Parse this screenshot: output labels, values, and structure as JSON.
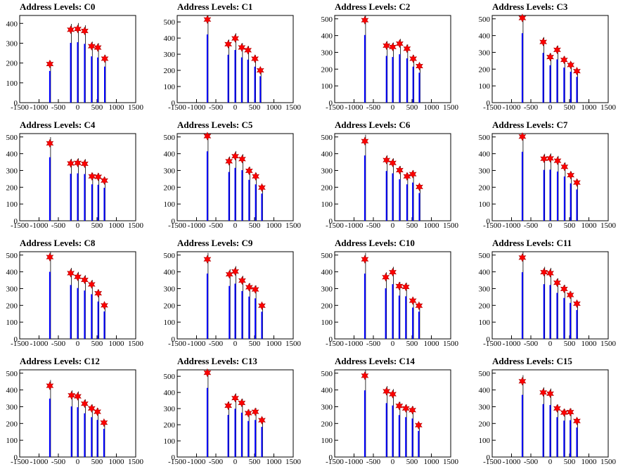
{
  "colors": {
    "histogram": "#0000ff",
    "marker_fill": "#ff0000",
    "marker_stroke": "#b00000",
    "axis": "#000000",
    "background": "#ffffff"
  },
  "chart_data": [
    {
      "type": "bar",
      "title": "Address Levels: C0",
      "xlim": [
        -1500,
        1500
      ],
      "ylim": [
        0,
        440
      ],
      "yticks": [
        0,
        100,
        200,
        300,
        400
      ],
      "xticks": [
        -1500,
        -1000,
        -500,
        0,
        500,
        1000,
        1500
      ],
      "peaks": [
        {
          "x": -720,
          "y": 195
        },
        {
          "x": -180,
          "y": 368
        },
        {
          "x": 0,
          "y": 372
        },
        {
          "x": 180,
          "y": 362
        },
        {
          "x": 360,
          "y": 285
        },
        {
          "x": 520,
          "y": 278
        },
        {
          "x": 700,
          "y": 222
        }
      ]
    },
    {
      "type": "bar",
      "title": "Address Levels: C1",
      "xlim": [
        -1500,
        1500
      ],
      "ylim": [
        0,
        540
      ],
      "yticks": [
        0,
        100,
        200,
        300,
        400,
        500
      ],
      "xticks": [
        -1500,
        -1000,
        -500,
        0,
        500,
        1000,
        1500
      ],
      "peaks": [
        {
          "x": -720,
          "y": 515
        },
        {
          "x": -180,
          "y": 362
        },
        {
          "x": 0,
          "y": 398
        },
        {
          "x": 170,
          "y": 342
        },
        {
          "x": 330,
          "y": 325
        },
        {
          "x": 510,
          "y": 272
        },
        {
          "x": 650,
          "y": 200
        }
      ]
    },
    {
      "type": "bar",
      "title": "Address Levels: C2",
      "xlim": [
        -1500,
        1500
      ],
      "ylim": [
        0,
        520
      ],
      "yticks": [
        0,
        100,
        200,
        300,
        400,
        500
      ],
      "xticks": [
        -1500,
        -1000,
        -500,
        0,
        500,
        1000,
        1500
      ],
      "peaks": [
        {
          "x": -720,
          "y": 492
        },
        {
          "x": -160,
          "y": 340
        },
        {
          "x": 0,
          "y": 332
        },
        {
          "x": 180,
          "y": 352
        },
        {
          "x": 370,
          "y": 322
        },
        {
          "x": 530,
          "y": 262
        },
        {
          "x": 690,
          "y": 218
        }
      ]
    },
    {
      "type": "bar",
      "title": "Address Levels: C3",
      "xlim": [
        -1500,
        1500
      ],
      "ylim": [
        0,
        520
      ],
      "yticks": [
        0,
        100,
        200,
        300,
        400,
        500
      ],
      "xticks": [
        -1500,
        -1000,
        -500,
        0,
        500,
        1000,
        1500
      ],
      "peaks": [
        {
          "x": -720,
          "y": 505
        },
        {
          "x": -180,
          "y": 362
        },
        {
          "x": 0,
          "y": 272
        },
        {
          "x": 180,
          "y": 315
        },
        {
          "x": 360,
          "y": 255
        },
        {
          "x": 530,
          "y": 225
        },
        {
          "x": 690,
          "y": 188
        }
      ]
    },
    {
      "type": "bar",
      "title": "Address Levels: C4",
      "xlim": [
        -1500,
        1500
      ],
      "ylim": [
        0,
        520
      ],
      "yticks": [
        0,
        100,
        200,
        300,
        400,
        500
      ],
      "xticks": [
        -1500,
        -1000,
        -500,
        0,
        500,
        1000,
        1500
      ],
      "peaks": [
        {
          "x": -720,
          "y": 462
        },
        {
          "x": -180,
          "y": 342
        },
        {
          "x": 0,
          "y": 345
        },
        {
          "x": 180,
          "y": 340
        },
        {
          "x": 370,
          "y": 265
        },
        {
          "x": 530,
          "y": 262
        },
        {
          "x": 690,
          "y": 240
        }
      ]
    },
    {
      "type": "bar",
      "title": "Address Levels: C5",
      "xlim": [
        -1500,
        1500
      ],
      "ylim": [
        0,
        520
      ],
      "yticks": [
        0,
        100,
        200,
        300,
        400,
        500
      ],
      "xticks": [
        -1500,
        -1000,
        -500,
        0,
        500,
        1000,
        1500
      ],
      "peaks": [
        {
          "x": -720,
          "y": 505
        },
        {
          "x": -160,
          "y": 355
        },
        {
          "x": 0,
          "y": 385
        },
        {
          "x": 180,
          "y": 368
        },
        {
          "x": 360,
          "y": 298
        },
        {
          "x": 530,
          "y": 265
        },
        {
          "x": 690,
          "y": 198
        }
      ]
    },
    {
      "type": "bar",
      "title": "Address Levels: C6",
      "xlim": [
        -1500,
        1500
      ],
      "ylim": [
        0,
        520
      ],
      "yticks": [
        0,
        100,
        200,
        300,
        400,
        500
      ],
      "xticks": [
        -1500,
        -1000,
        -500,
        0,
        500,
        1000,
        1500
      ],
      "peaks": [
        {
          "x": -720,
          "y": 475
        },
        {
          "x": -160,
          "y": 362
        },
        {
          "x": 0,
          "y": 345
        },
        {
          "x": 180,
          "y": 302
        },
        {
          "x": 370,
          "y": 265
        },
        {
          "x": 520,
          "y": 278
        },
        {
          "x": 690,
          "y": 202
        }
      ]
    },
    {
      "type": "bar",
      "title": "Address Levels: C7",
      "xlim": [
        -1500,
        1500
      ],
      "ylim": [
        0,
        520
      ],
      "yticks": [
        0,
        100,
        200,
        300,
        400,
        500
      ],
      "xticks": [
        -1500,
        -1000,
        -500,
        0,
        500,
        1000,
        1500
      ],
      "peaks": [
        {
          "x": -720,
          "y": 502
        },
        {
          "x": -160,
          "y": 370
        },
        {
          "x": 0,
          "y": 372
        },
        {
          "x": 190,
          "y": 358
        },
        {
          "x": 370,
          "y": 322
        },
        {
          "x": 530,
          "y": 272
        },
        {
          "x": 690,
          "y": 228
        }
      ]
    },
    {
      "type": "bar",
      "title": "Address Levels: C8",
      "xlim": [
        -1500,
        1500
      ],
      "ylim": [
        0,
        520
      ],
      "yticks": [
        0,
        100,
        200,
        300,
        400,
        500
      ],
      "xticks": [
        -1500,
        -1000,
        -500,
        0,
        500,
        1000,
        1500
      ],
      "peaks": [
        {
          "x": -720,
          "y": 488
        },
        {
          "x": -180,
          "y": 392
        },
        {
          "x": 0,
          "y": 370
        },
        {
          "x": 180,
          "y": 352
        },
        {
          "x": 360,
          "y": 325
        },
        {
          "x": 530,
          "y": 272
        },
        {
          "x": 690,
          "y": 200
        }
      ]
    },
    {
      "type": "bar",
      "title": "Address Levels: C9",
      "xlim": [
        -1500,
        1500
      ],
      "ylim": [
        0,
        520
      ],
      "yticks": [
        0,
        100,
        200,
        300,
        400,
        500
      ],
      "xticks": [
        -1500,
        -1000,
        -500,
        0,
        500,
        1000,
        1500
      ],
      "peaks": [
        {
          "x": -720,
          "y": 475
        },
        {
          "x": -150,
          "y": 385
        },
        {
          "x": 0,
          "y": 402
        },
        {
          "x": 180,
          "y": 348
        },
        {
          "x": 360,
          "y": 308
        },
        {
          "x": 520,
          "y": 295
        },
        {
          "x": 690,
          "y": 198
        }
      ]
    },
    {
      "type": "bar",
      "title": "Address Levels: C10",
      "xlim": [
        -1500,
        1500
      ],
      "ylim": [
        0,
        520
      ],
      "yticks": [
        0,
        100,
        200,
        300,
        400,
        500
      ],
      "xticks": [
        -1500,
        -1000,
        -500,
        0,
        500,
        1000,
        1500
      ],
      "peaks": [
        {
          "x": -720,
          "y": 475
        },
        {
          "x": -180,
          "y": 368
        },
        {
          "x": 0,
          "y": 398
        },
        {
          "x": 170,
          "y": 315
        },
        {
          "x": 340,
          "y": 310
        },
        {
          "x": 520,
          "y": 228
        },
        {
          "x": 680,
          "y": 198
        }
      ]
    },
    {
      "type": "bar",
      "title": "Address Levels: C11",
      "xlim": [
        -1500,
        1500
      ],
      "ylim": [
        0,
        520
      ],
      "yticks": [
        0,
        100,
        200,
        300,
        400,
        500
      ],
      "xticks": [
        -1500,
        -1000,
        -500,
        0,
        500,
        1000,
        1500
      ],
      "peaks": [
        {
          "x": -720,
          "y": 485
        },
        {
          "x": -160,
          "y": 398
        },
        {
          "x": 0,
          "y": 392
        },
        {
          "x": 180,
          "y": 335
        },
        {
          "x": 360,
          "y": 298
        },
        {
          "x": 520,
          "y": 262
        },
        {
          "x": 690,
          "y": 210
        }
      ]
    },
    {
      "type": "bar",
      "title": "Address Levels: C12",
      "xlim": [
        -1500,
        1500
      ],
      "ylim": [
        0,
        520
      ],
      "yticks": [
        0,
        100,
        200,
        300,
        400,
        500
      ],
      "xticks": [
        -1500,
        -1000,
        -500,
        0,
        500,
        1000,
        1500
      ],
      "peaks": [
        {
          "x": -720,
          "y": 425
        },
        {
          "x": -160,
          "y": 368
        },
        {
          "x": 0,
          "y": 362
        },
        {
          "x": 180,
          "y": 318
        },
        {
          "x": 360,
          "y": 290
        },
        {
          "x": 510,
          "y": 270
        },
        {
          "x": 680,
          "y": 205
        }
      ]
    },
    {
      "type": "bar",
      "title": "Address Levels: C13",
      "xlim": [
        -1500,
        1500
      ],
      "ylim": [
        0,
        540
      ],
      "yticks": [
        0,
        100,
        200,
        300,
        400,
        500
      ],
      "xticks": [
        -1500,
        -1000,
        -500,
        0,
        500,
        1000,
        1500
      ],
      "peaks": [
        {
          "x": -720,
          "y": 522
        },
        {
          "x": -180,
          "y": 318
        },
        {
          "x": 0,
          "y": 365
        },
        {
          "x": 170,
          "y": 335
        },
        {
          "x": 340,
          "y": 272
        },
        {
          "x": 520,
          "y": 280
        },
        {
          "x": 690,
          "y": 228
        }
      ]
    },
    {
      "type": "bar",
      "title": "Address Levels: C14",
      "xlim": [
        -1500,
        1500
      ],
      "ylim": [
        0,
        520
      ],
      "yticks": [
        0,
        100,
        200,
        300,
        400,
        500
      ],
      "xticks": [
        -1500,
        -1000,
        -500,
        0,
        500,
        1000,
        1500
      ],
      "peaks": [
        {
          "x": -720,
          "y": 485
        },
        {
          "x": -160,
          "y": 392
        },
        {
          "x": 0,
          "y": 375
        },
        {
          "x": 170,
          "y": 305
        },
        {
          "x": 340,
          "y": 290
        },
        {
          "x": 510,
          "y": 280
        },
        {
          "x": 670,
          "y": 190
        }
      ]
    },
    {
      "type": "bar",
      "title": "Address Levels: C15",
      "xlim": [
        -1500,
        1500
      ],
      "ylim": [
        0,
        520
      ],
      "yticks": [
        0,
        100,
        200,
        300,
        400,
        500
      ],
      "xticks": [
        -1500,
        -1000,
        -500,
        0,
        500,
        1000,
        1500
      ],
      "peaks": [
        {
          "x": -720,
          "y": 452
        },
        {
          "x": -180,
          "y": 385
        },
        {
          "x": 0,
          "y": 378
        },
        {
          "x": 180,
          "y": 290
        },
        {
          "x": 360,
          "y": 265
        },
        {
          "x": 520,
          "y": 268
        },
        {
          "x": 690,
          "y": 215
        }
      ]
    }
  ]
}
